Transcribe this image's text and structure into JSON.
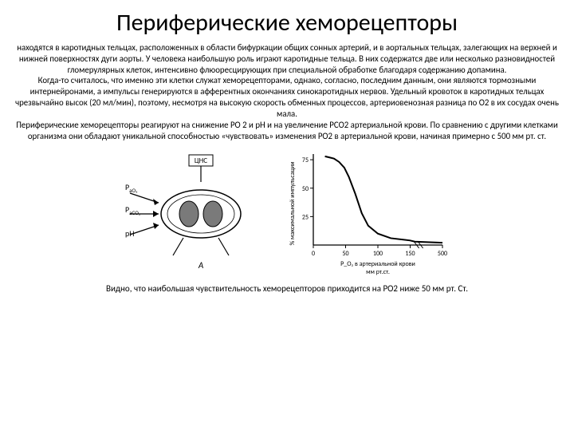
{
  "title": "Периферические хеморецепторы",
  "body": "находятся в каротидных тельцах, расположенных в области бифуркации общих сонных артерий, и в аортальных тельцах, залегающих на верхней и нижней поверхностях дуги аорты. У человека наибольшую роль играют каротидные тельца. В них содержатся две или несколько разновидностей гломерулярных клеток, интенсивно флюоресцирующих при специальной обработке благодаря содержанию допамина.\nКогда-то считалось, что именно эти клетки служат хеморецепторами, однако, согласно, последним данным, они являются тормозными интернейронами, а импульсы генерируются в афферентных окончаниях синокаротидных нервов. Удельный кровоток в каротидных тельцах чрезвычайно высок (20 мл/мин), поэтому, несмотря на высокую скорость обменных процессов, артериовенозная разница по О2 в их сосудах очень мала.\nПериферические хеморецепторы реагируют на снижение РО 2 и рН и на увеличение РСО2 артериальной крови. По сравнению с другими клетками организма они обладают уникальной способностью «чувствовать» изменения РО2 в артериальной крови, начиная примерно с 500 мм рт. ст.",
  "caption": "Видно, что наибольшая чувствительность хеморецепторов приходится на РО2 ниже 50 мм рт. Ст.",
  "diagram": {
    "label_top": "ЦНС",
    "label_po2": "P",
    "label_po2_sub": "aO₂",
    "label_pco2": "P",
    "label_pco2_sub": "aCO₂",
    "label_ph": "pH",
    "label_a": "А",
    "stroke": "#000000",
    "fill_body": "#ffffff",
    "fill_cell": "#7a7a7a"
  },
  "chart": {
    "type": "line",
    "x_ticks": [
      0,
      50,
      100,
      150,
      500
    ],
    "y_ticks": [
      25,
      50,
      75
    ],
    "x_label": "P_O₂ в артериальной крови\nмм рт.ст.",
    "y_label": "% максимальной импульсации",
    "points": [
      [
        18,
        78
      ],
      [
        25,
        77
      ],
      [
        32,
        76
      ],
      [
        40,
        73
      ],
      [
        48,
        68
      ],
      [
        55,
        60
      ],
      [
        65,
        45
      ],
      [
        75,
        28
      ],
      [
        85,
        17
      ],
      [
        100,
        10
      ],
      [
        120,
        6
      ],
      [
        150,
        4
      ],
      [
        200,
        3
      ],
      [
        500,
        2
      ]
    ],
    "line_color": "#000000",
    "line_width": 2,
    "axis_color": "#000000",
    "tick_fontsize": 8
  }
}
